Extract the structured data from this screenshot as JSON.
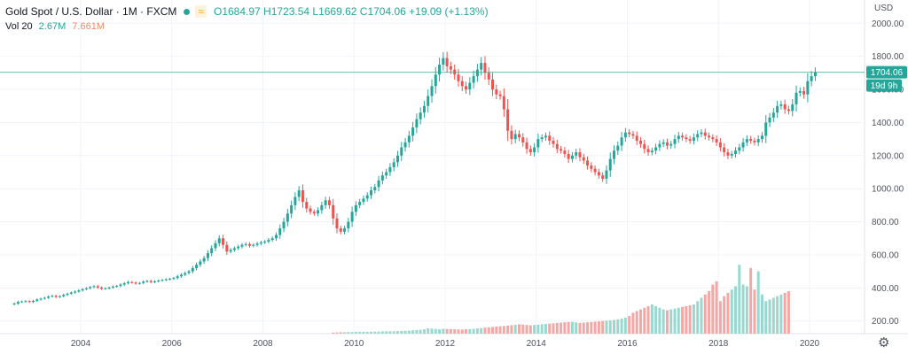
{
  "header": {
    "symbol": "Gold Spot / U.S. Dollar · 1M · FXCM",
    "ohlc": "O1684.97 H1723.54 L1669.62 C1704.06 +19.09 (+1.13%)",
    "icons": [
      "status-dot-icon",
      "wave-icon"
    ]
  },
  "volume": {
    "label": "Vol 20",
    "value": "2.67M",
    "ma": "7.661M"
  },
  "currency": "USD",
  "price_label": {
    "value": "1704.06",
    "countdown": "19d 9h"
  },
  "colors": {
    "up": "#26a69a",
    "down": "#ef5350",
    "vol_up": "#9ad8cf",
    "vol_down": "#f4a7a5",
    "last": "#26a69a"
  },
  "chart_data": {
    "type": "candlestick",
    "title": "Gold Spot / U.S. Dollar",
    "interval": "1M",
    "x_ticks": [
      "2004",
      "2006",
      "2008",
      "2010",
      "2012",
      "2014",
      "2016",
      "2018",
      "2020"
    ],
    "y_ticks": [
      200,
      400,
      600,
      800,
      1000,
      1200,
      1400,
      1600,
      1800,
      2000
    ],
    "ylim": [
      100,
      2100
    ],
    "last_price": 1704.06,
    "close_series": {
      "start": "2002-07",
      "step": "1M",
      "values": [
        305,
        315,
        318,
        320,
        315,
        322,
        330,
        335,
        340,
        348,
        352,
        345,
        350,
        358,
        365,
        372,
        378,
        385,
        392,
        398,
        405,
        410,
        402,
        395,
        398,
        402,
        408,
        412,
        420,
        428,
        435,
        432,
        426,
        430,
        438,
        442,
        435,
        440,
        445,
        448,
        452,
        455,
        460,
        470,
        480,
        490,
        500,
        520,
        540,
        560,
        580,
        610,
        640,
        670,
        700,
        660,
        620,
        630,
        640,
        650,
        660,
        665,
        655,
        660,
        668,
        675,
        680,
        690,
        700,
        720,
        760,
        800,
        850,
        900,
        950,
        990,
        920,
        880,
        860,
        850,
        870,
        900,
        930,
        900,
        820,
        760,
        740,
        760,
        800,
        860,
        900,
        920,
        940,
        960,
        990,
        1010,
        1050,
        1080,
        1100,
        1130,
        1160,
        1200,
        1250,
        1280,
        1320,
        1370,
        1420,
        1460,
        1500,
        1560,
        1620,
        1690,
        1750,
        1790,
        1740,
        1720,
        1690,
        1650,
        1620,
        1600,
        1640,
        1680,
        1720,
        1760,
        1700,
        1660,
        1600,
        1570,
        1560,
        1480,
        1350,
        1300,
        1330,
        1310,
        1280,
        1240,
        1220,
        1250,
        1300,
        1310,
        1320,
        1290,
        1270,
        1240,
        1230,
        1210,
        1180,
        1200,
        1220,
        1190,
        1170,
        1140,
        1120,
        1100,
        1080,
        1060,
        1110,
        1180,
        1230,
        1260,
        1310,
        1340,
        1330,
        1320,
        1290,
        1270,
        1240,
        1220,
        1230,
        1250,
        1270,
        1280,
        1260,
        1270,
        1300,
        1320,
        1310,
        1300,
        1290,
        1310,
        1330,
        1340,
        1320,
        1310,
        1300,
        1280,
        1250,
        1220,
        1200,
        1210,
        1230,
        1250,
        1280,
        1300,
        1290,
        1280,
        1300,
        1320,
        1400,
        1430,
        1460,
        1500,
        1510,
        1480,
        1470,
        1510,
        1580,
        1590,
        1570,
        1650,
        1680,
        1704
      ]
    },
    "volume_series": {
      "start": "2009-07",
      "values": [
        10,
        11,
        12,
        12,
        13,
        13,
        14,
        14,
        15,
        15,
        15,
        16,
        16,
        17,
        17,
        18,
        18,
        19,
        20,
        21,
        22,
        23,
        25,
        27,
        30,
        36,
        34,
        32,
        30,
        33,
        32,
        31,
        30,
        29,
        28,
        30,
        31,
        33,
        35,
        37,
        40,
        42,
        44,
        46,
        48,
        50,
        52,
        55,
        58,
        60,
        58,
        56,
        54,
        56,
        58,
        60,
        62,
        64,
        66,
        68,
        70,
        72,
        74,
        75,
        72,
        68,
        70,
        72,
        74,
        76,
        78,
        80,
        82,
        84,
        86,
        90,
        95,
        100,
        110,
        130,
        140,
        150,
        160,
        170,
        180,
        170,
        160,
        150,
        145,
        150,
        155,
        160,
        165,
        170,
        175,
        180,
        200,
        220,
        240,
        260,
        300,
        320,
        200,
        230,
        250,
        270,
        290,
        420,
        300,
        290,
        400,
        270,
        380,
        240,
        200,
        210,
        220,
        230,
        240,
        250,
        260
      ]
    }
  }
}
